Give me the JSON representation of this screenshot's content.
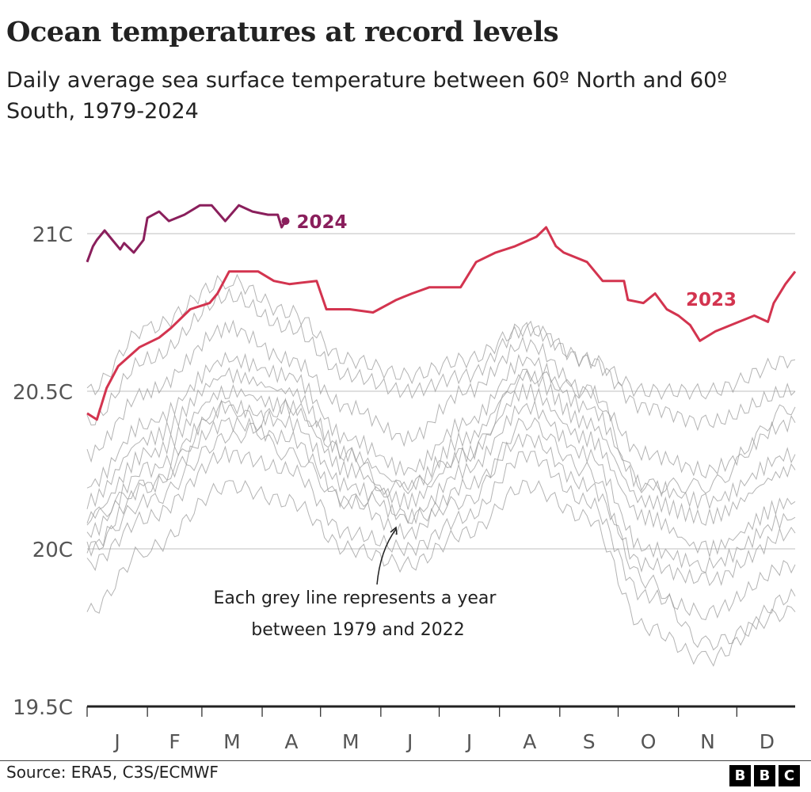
{
  "title": "Ocean temperatures at record levels",
  "subtitle": "Daily average sea surface temperature between 60º North and 60º South, 1979-2024",
  "source": "Source: ERA5, C3S/ECMWF",
  "logo": [
    "B",
    "B",
    "C"
  ],
  "chart_data": {
    "type": "line",
    "title": "Ocean temperatures at record levels",
    "xlabel": "",
    "ylabel": "",
    "x_tick_labels": [
      "J",
      "F",
      "M",
      "A",
      "M",
      "J",
      "J",
      "A",
      "S",
      "O",
      "N",
      "D"
    ],
    "y_ticks": [
      19.5,
      20,
      20.5,
      21
    ],
    "y_tick_labels": [
      "19.5C",
      "20C",
      "20.5C",
      "21C"
    ],
    "ylim": [
      19.5,
      21.15
    ],
    "grid": "horizontal",
    "annotation": [
      "Each grey line represents a year",
      "between 1979 and 2022"
    ],
    "colors": {
      "2024": "#8a1f5c",
      "2023": "#d3344f",
      "grey": "#9a9a9a"
    },
    "series": [
      {
        "name": "2023",
        "label": "2023",
        "dates": [
          "01-01",
          "01-06",
          "01-11",
          "01-17",
          "01-28",
          "02-07",
          "02-13",
          "02-23",
          "03-05",
          "03-09",
          "03-15",
          "03-30",
          "04-07",
          "04-15",
          "04-29",
          "05-04",
          "05-16",
          "05-28",
          "06-09",
          "06-17",
          "06-26",
          "07-12",
          "07-20",
          "07-30",
          "08-09",
          "08-20",
          "08-25",
          "08-30",
          "09-03",
          "09-15",
          "09-23",
          "10-04",
          "10-06",
          "10-14",
          "10-20",
          "10-26",
          "11-01",
          "11-07",
          "11-12",
          "11-20",
          "11-28",
          "12-10",
          "12-17",
          "12-20",
          "12-26",
          "12-31"
        ],
        "values": [
          20.43,
          20.41,
          20.51,
          20.58,
          20.64,
          20.67,
          20.7,
          20.76,
          20.78,
          20.81,
          20.88,
          20.88,
          20.85,
          20.84,
          20.85,
          20.76,
          20.76,
          20.75,
          20.79,
          20.81,
          20.83,
          20.83,
          20.91,
          20.94,
          20.96,
          20.99,
          21.02,
          20.96,
          20.94,
          20.91,
          20.85,
          20.85,
          20.79,
          20.78,
          20.81,
          20.76,
          20.74,
          20.71,
          20.66,
          20.69,
          20.71,
          20.74,
          20.72,
          20.78,
          20.84,
          20.88
        ]
      },
      {
        "name": "2024",
        "label": "2024",
        "dates": [
          "01-01",
          "01-04",
          "01-06",
          "01-10",
          "01-14",
          "01-18",
          "01-20",
          "01-25",
          "01-30",
          "02-01",
          "02-07",
          "02-12",
          "02-20",
          "02-28",
          "03-06",
          "03-13",
          "03-20",
          "03-27",
          "04-04",
          "04-09",
          "04-11",
          "04-13"
        ],
        "values": [
          20.91,
          20.96,
          20.98,
          21.01,
          20.98,
          20.95,
          20.97,
          20.94,
          20.98,
          21.05,
          21.07,
          21.04,
          21.06,
          21.09,
          21.09,
          21.04,
          21.09,
          21.07,
          21.06,
          21.06,
          21.02,
          21.04
        ]
      }
    ],
    "grey_series_dates": [
      "01-01",
      "02-01",
      "03-15",
      "04-15",
      "05-15",
      "06-15",
      "07-15",
      "08-15",
      "09-15",
      "10-15",
      "11-15",
      "12-31"
    ],
    "grey_series": [
      [
        19.8,
        20.0,
        20.2,
        20.15,
        20.0,
        19.95,
        20.05,
        20.2,
        20.1,
        19.75,
        19.65,
        19.85
      ],
      [
        19.95,
        20.1,
        20.3,
        20.25,
        20.05,
        20.0,
        20.1,
        20.3,
        20.15,
        19.85,
        19.8,
        19.95
      ],
      [
        20.0,
        20.2,
        20.4,
        20.35,
        20.15,
        20.05,
        20.2,
        20.35,
        20.2,
        19.95,
        19.9,
        20.05
      ],
      [
        20.05,
        20.25,
        20.45,
        20.4,
        20.2,
        20.1,
        20.25,
        20.45,
        20.3,
        20.0,
        19.95,
        20.1
      ],
      [
        20.1,
        20.3,
        20.5,
        20.45,
        20.25,
        20.15,
        20.3,
        20.5,
        20.35,
        20.1,
        20.0,
        20.15
      ],
      [
        20.15,
        20.35,
        20.55,
        20.5,
        20.3,
        20.2,
        20.35,
        20.55,
        20.4,
        20.15,
        20.1,
        20.25
      ],
      [
        20.2,
        20.4,
        20.6,
        20.55,
        20.35,
        20.25,
        20.4,
        20.6,
        20.45,
        20.2,
        20.15,
        20.3
      ],
      [
        20.3,
        20.5,
        20.7,
        20.6,
        20.45,
        20.35,
        20.5,
        20.65,
        20.5,
        20.3,
        20.25,
        20.4
      ],
      [
        20.4,
        20.6,
        20.8,
        20.7,
        20.55,
        20.5,
        20.55,
        20.7,
        20.6,
        20.45,
        20.4,
        20.5
      ],
      [
        20.5,
        20.7,
        20.85,
        20.75,
        20.6,
        20.55,
        20.6,
        20.7,
        20.6,
        20.5,
        20.5,
        20.6
      ],
      [
        20.0,
        20.15,
        20.35,
        20.45,
        20.3,
        20.1,
        20.15,
        20.4,
        20.25,
        19.9,
        19.7,
        19.8
      ],
      [
        20.1,
        20.2,
        20.45,
        20.3,
        20.15,
        20.2,
        20.3,
        20.55,
        20.5,
        20.2,
        20.2,
        20.45
      ]
    ]
  }
}
